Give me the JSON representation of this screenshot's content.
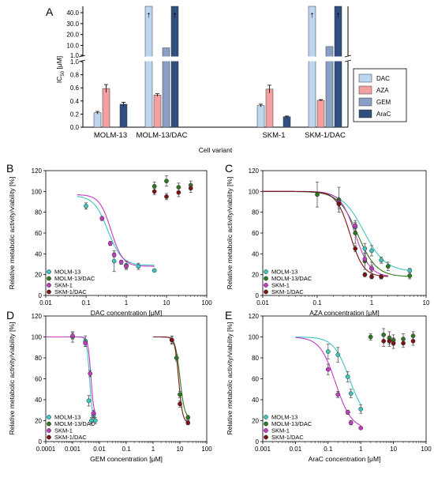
{
  "colors": {
    "DAC": "#bcd6f2",
    "AZA": "#f2a0a0",
    "GEM": "#8a9fc6",
    "AraC": "#2f4f80",
    "MOLM-13": "#3fc6c0",
    "MOLM-13/DAC": "#2f7a1e",
    "SKM-1": "#c23cc2",
    "SKM-1/DAC": "#7a1418"
  },
  "chart_data": [
    {
      "type": "bar",
      "panel": "A",
      "xlabel": "Cell variant",
      "ylabel": "IC",
      "ylabel_sub": "50",
      "ylabel_unit": " [μM]",
      "yticks_lower": [
        "0.0",
        "0.2",
        "0.4",
        "0.6",
        "0.8",
        "1.0"
      ],
      "yticks_upper": [
        "1.0",
        "10.0",
        "20.0",
        "30.0",
        "40.0"
      ],
      "categories": [
        "MOLM-13",
        "MOLM-13/DAC",
        "SKM-1",
        "SKM-1/DAC"
      ],
      "dagger": "†",
      "legend": [
        "DAC",
        "AZA",
        "GEM",
        "AraC"
      ],
      "series": [
        {
          "name": "DAC",
          "values": [
            0.22,
            45,
            0.33,
            45
          ],
          "err": [
            0.02,
            0,
            0.02,
            0
          ],
          "dagger": [
            false,
            true,
            false,
            true
          ]
        },
        {
          "name": "AZA",
          "values": [
            0.59,
            0.49,
            0.58,
            0.41
          ],
          "err": [
            0.06,
            0.02,
            0.06,
            0.01
          ],
          "dagger": [
            false,
            false,
            false,
            false
          ]
        },
        {
          "name": "GEM",
          "values": [
            0.004,
            7.8,
            0.005,
            9.0
          ],
          "err": [
            0,
            0,
            0,
            0
          ],
          "dagger": [
            false,
            false,
            false,
            false
          ]
        },
        {
          "name": "AraC",
          "values": [
            0.35,
            45,
            0.16,
            45
          ],
          "err": [
            0.03,
            0,
            0.01,
            0
          ],
          "dagger": [
            false,
            true,
            false,
            true
          ]
        }
      ]
    },
    {
      "type": "scatter",
      "panel": "B",
      "xlabel": "DAC concentration [μM]",
      "ylabel": "Relative metabolic activity/viability [%]",
      "xticks": [
        "0.01",
        "0.1",
        "1",
        "10",
        "100"
      ],
      "yticks": [
        "0",
        "20",
        "40",
        "60",
        "80",
        "100",
        "120"
      ],
      "legend": [
        "MOLM-13",
        "MOLM-13/DAC",
        "SKM-1",
        "SKM-1/DAC"
      ],
      "series": [
        {
          "name": "MOLM-13",
          "x": [
            0.1,
            0.5,
            1,
            2,
            5
          ],
          "y": [
            86,
            33,
            29,
            28,
            24
          ],
          "err": [
            3,
            10,
            4,
            3,
            1
          ],
          "fit": {
            "top": 96,
            "bottom": 29,
            "ec50": 0.35,
            "hill": 2.5,
            "from": 0.06,
            "to": 5
          }
        },
        {
          "name": "MOLM-13/DAC",
          "x": [
            5,
            10,
            20,
            40
          ],
          "y": [
            105,
            110,
            104,
            106
          ],
          "err": [
            4,
            5,
            4,
            4
          ],
          "fit": null
        },
        {
          "name": "SKM-1",
          "x": [
            0.25,
            0.4,
            0.5,
            0.75,
            1
          ],
          "y": [
            74,
            50,
            39,
            32,
            28
          ],
          "err": [
            2,
            2,
            2,
            2,
            2
          ],
          "fit": {
            "top": 97,
            "bottom": 28,
            "ec50": 0.42,
            "hill": 3.0,
            "from": 0.06,
            "to": 5
          }
        },
        {
          "name": "SKM-1/DAC",
          "x": [
            5,
            10,
            20,
            40
          ],
          "y": [
            100,
            95,
            99,
            103
          ],
          "err": [
            3,
            3,
            4,
            4
          ],
          "fit": null
        }
      ]
    },
    {
      "type": "scatter",
      "panel": "C",
      "xlabel": "AZA concentration [μM]",
      "ylabel": "Relative metabolic activity/viability [%]",
      "xticks": [
        "0.01",
        "0.1",
        "1",
        "10"
      ],
      "yticks": [
        "0",
        "20",
        "40",
        "60",
        "80",
        "100",
        "120"
      ],
      "legend": [
        "MOLM-13",
        "MOLM-13/DAC",
        "SKM-1",
        "SKM-1/DAC"
      ],
      "series": [
        {
          "name": "MOLM-13",
          "x": [
            0.25,
            0.5,
            0.75,
            1,
            1.5,
            5
          ],
          "y": [
            88,
            66,
            45,
            43,
            34,
            24
          ],
          "err": [
            5,
            6,
            5,
            5,
            3,
            2
          ],
          "fit": {
            "top": 100,
            "bottom": 23,
            "ec50": 0.72,
            "hill": 2.2,
            "from": 0.01,
            "to": 5
          }
        },
        {
          "name": "MOLM-13/DAC",
          "x": [
            0.1,
            0.25,
            0.5,
            0.75,
            1,
            2,
            5
          ],
          "y": [
            97,
            92,
            60,
            33,
            26,
            28,
            19
          ],
          "err": [
            12,
            12,
            10,
            8,
            6,
            4,
            3
          ],
          "fit": {
            "top": 100,
            "bottom": 18,
            "ec50": 0.55,
            "hill": 2.5,
            "from": 0.01,
            "to": 5
          }
        },
        {
          "name": "SKM-1",
          "x": [
            0.25,
            0.5,
            0.75,
            1,
            1.5
          ],
          "y": [
            90,
            67,
            35,
            26,
            18
          ],
          "err": [
            3,
            3,
            3,
            3,
            2
          ],
          "fit": {
            "top": 100,
            "bottom": 18,
            "ec50": 0.5,
            "hill": 3.2,
            "from": 0.01,
            "to": 2
          }
        },
        {
          "name": "SKM-1/DAC",
          "x": [
            0.25,
            0.5,
            0.75,
            1,
            1.5
          ],
          "y": [
            88,
            45,
            20,
            18,
            18
          ],
          "err": [
            3,
            3,
            2,
            2,
            2
          ],
          "fit": {
            "top": 100,
            "bottom": 18,
            "ec50": 0.4,
            "hill": 3.5,
            "from": 0.01,
            "to": 2
          }
        }
      ]
    },
    {
      "type": "scatter",
      "panel": "D",
      "xlabel": "GEM concentration [μM]",
      "ylabel": "Relative metabolic activity/viability [%]",
      "xticks": [
        "0.0001",
        "0.001",
        "0.01",
        "0.1",
        "1",
        "10",
        "100"
      ],
      "yticks": [
        "0",
        "20",
        "40",
        "60",
        "80",
        "100",
        "120"
      ],
      "legend": [
        "MOLM-13",
        "MOLM-13/DAC",
        "SKM-1",
        "SKM-1/DAC"
      ],
      "series": [
        {
          "name": "MOLM-13",
          "x": [
            0.001,
            0.003,
            0.004,
            0.005,
            0.006,
            0.007
          ],
          "y": [
            100,
            96,
            39,
            20,
            25,
            20
          ],
          "err": [
            5,
            5,
            5,
            3,
            3,
            3
          ],
          "fit": {
            "top": 100,
            "bottom": 19,
            "ec50": 0.0043,
            "hill": 8,
            "from": 0.0001,
            "to": 0.0075
          }
        },
        {
          "name": "MOLM-13/DAC",
          "x": [
            5,
            7.5,
            10,
            20
          ],
          "y": [
            97,
            80,
            45,
            23
          ],
          "err": [
            3,
            3,
            3,
            2
          ],
          "fit": {
            "top": 100,
            "bottom": 22,
            "ec50": 10,
            "hill": 5,
            "from": 1,
            "to": 20
          }
        },
        {
          "name": "SKM-1",
          "x": [
            0.001,
            0.003,
            0.0045,
            0.006
          ],
          "y": [
            101,
            94,
            65,
            27
          ],
          "err": [
            3,
            3,
            3,
            3
          ],
          "fit": {
            "top": 100,
            "bottom": 24,
            "ec50": 0.0048,
            "hill": 8,
            "from": 0.0001,
            "to": 0.0075
          }
        },
        {
          "name": "SKM-1/DAC",
          "x": [
            5,
            10,
            20
          ],
          "y": [
            97,
            36,
            18
          ],
          "err": [
            4,
            3,
            2
          ],
          "fit": {
            "top": 100,
            "bottom": 18,
            "ec50": 9,
            "hill": 6,
            "from": 1,
            "to": 20
          }
        }
      ]
    },
    {
      "type": "scatter",
      "panel": "E",
      "xlabel": "AraC concentration [μM]",
      "ylabel": "Relative metabolic activity/viability [%]",
      "xticks": [
        "0.001",
        "0.01",
        "0.1",
        "1",
        "10",
        "100"
      ],
      "yticks": [
        "0",
        "20",
        "40",
        "60",
        "80",
        "100",
        "120"
      ],
      "legend": [
        "MOLM-13",
        "MOLM-13/DAC",
        "SKM-1",
        "SKM-1/DAC"
      ],
      "series": [
        {
          "name": "MOLM-13",
          "x": [
            0.1,
            0.2,
            0.4,
            0.5,
            1
          ],
          "y": [
            86,
            83,
            62,
            46,
            31
          ],
          "err": [
            7,
            7,
            5,
            4,
            4
          ],
          "fit": {
            "top": 100,
            "bottom": 20,
            "ec50": 0.45,
            "hill": 1.8,
            "from": 0.01,
            "to": 1
          }
        },
        {
          "name": "MOLM-13/DAC",
          "x": [
            2,
            5,
            7.5,
            10,
            20,
            40
          ],
          "y": [
            100,
            102,
            99,
            97,
            98,
            101
          ],
          "err": [
            3,
            6,
            6,
            5,
            5,
            4
          ],
          "fit": null
        },
        {
          "name": "SKM-1",
          "x": [
            0.1,
            0.2,
            0.4,
            0.5,
            1
          ],
          "y": [
            69,
            45,
            28,
            18,
            13
          ],
          "err": [
            5,
            3,
            2,
            2,
            1
          ],
          "fit": {
            "top": 100,
            "bottom": 12,
            "ec50": 0.17,
            "hill": 1.8,
            "from": 0.01,
            "to": 1
          }
        },
        {
          "name": "SKM-1/DAC",
          "x": [
            5,
            7.5,
            10,
            20,
            40
          ],
          "y": [
            96,
            96,
            94,
            94,
            96
          ],
          "err": [
            5,
            5,
            5,
            4,
            4
          ],
          "fit": null
        }
      ]
    }
  ]
}
